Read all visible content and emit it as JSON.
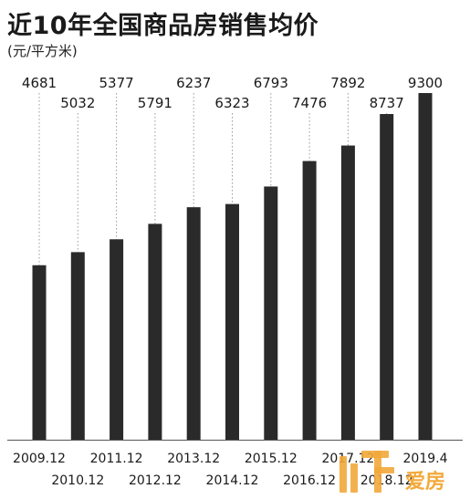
{
  "title": "近10年全国商品房销售均价",
  "subtitle": "(元/平方米)",
  "watermark": {
    "logo_text": "爱房",
    "color": "#f2a93b"
  },
  "colors": {
    "bar": "#2a2a2a",
    "guide": "#9a9a9a",
    "axis": "#555555"
  },
  "chart_data": {
    "type": "bar",
    "title": "近10年全国商品房销售均价",
    "ylabel": "(元/平方米)",
    "xlabel": "",
    "categories": [
      "2009.12",
      "2010.12",
      "2011.12",
      "2012.12",
      "2013.12",
      "2014.12",
      "2015.12",
      "2016.12",
      "2017.12",
      "2018.12",
      "2019.4"
    ],
    "values": [
      4681,
      5032,
      5377,
      5791,
      6237,
      6323,
      6793,
      7476,
      7892,
      8737,
      9300
    ],
    "ylim": [
      0,
      9300
    ],
    "grid": false,
    "legend": "none",
    "data_labels": true
  }
}
